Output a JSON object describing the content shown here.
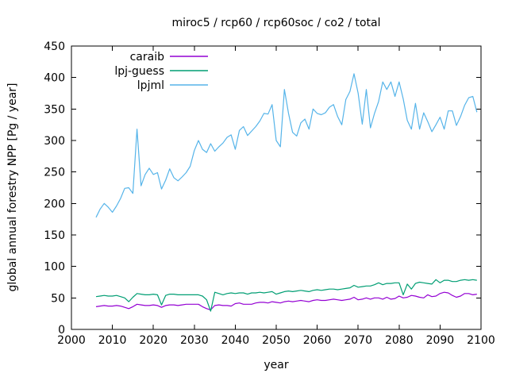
{
  "chart_data": {
    "type": "line",
    "title": "miroc5 / rcp60 / rcp60soc / co2 / total",
    "xlabel": "year",
    "ylabel": "global annual forestry NPP [Pg / year]",
    "xlim": [
      2000,
      2100
    ],
    "ylim": [
      0,
      450
    ],
    "xtick_step": 10,
    "ytick_step": 50,
    "grid": false,
    "legend_position": "top-left-inside",
    "x_start": 2006,
    "x_step": 1,
    "series": [
      {
        "name": "caraib",
        "color": "#9400d3",
        "values": [
          36,
          37,
          38,
          37,
          37,
          38,
          37,
          35,
          33,
          36,
          40,
          39,
          38,
          38,
          39,
          38,
          35,
          38,
          39,
          39,
          38,
          39,
          40,
          40,
          40,
          40,
          36,
          33,
          31,
          38,
          39,
          38,
          38,
          37,
          41,
          42,
          40,
          40,
          40,
          42,
          43,
          43,
          42,
          44,
          43,
          42,
          44,
          45,
          44,
          45,
          46,
          45,
          44,
          46,
          47,
          46,
          46,
          47,
          48,
          47,
          46,
          47,
          48,
          51,
          47,
          48,
          50,
          48,
          50,
          50,
          48,
          51,
          48,
          49,
          53,
          50,
          51,
          54,
          53,
          51,
          50,
          55,
          52,
          53,
          57,
          59,
          58,
          54,
          51,
          53,
          57,
          57,
          55,
          56
        ]
      },
      {
        "name": "lpj-guess",
        "color": "#009e73",
        "values": [
          52,
          53,
          54,
          53,
          53,
          54,
          52,
          50,
          44,
          51,
          57,
          56,
          55,
          55,
          56,
          55,
          39,
          54,
          56,
          56,
          55,
          55,
          55,
          55,
          55,
          55,
          53,
          47,
          29,
          59,
          57,
          55,
          57,
          58,
          57,
          58,
          58,
          56,
          58,
          58,
          59,
          58,
          59,
          60,
          56,
          58,
          60,
          61,
          60,
          61,
          62,
          61,
          60,
          62,
          63,
          62,
          63,
          64,
          64,
          63,
          64,
          65,
          66,
          70,
          67,
          68,
          69,
          69,
          71,
          74,
          71,
          73,
          73,
          74,
          74,
          55,
          72,
          64,
          73,
          75,
          74,
          73,
          72,
          79,
          74,
          78,
          78,
          76,
          76,
          78,
          79,
          78,
          79,
          78
        ]
      },
      {
        "name": "lpjml",
        "color": "#56b4e9",
        "values": [
          178,
          191,
          200,
          194,
          186,
          196,
          208,
          224,
          225,
          216,
          318,
          228,
          246,
          256,
          246,
          249,
          223,
          237,
          255,
          241,
          236,
          242,
          249,
          259,
          284,
          300,
          286,
          281,
          295,
          283,
          290,
          296,
          305,
          309,
          286,
          316,
          322,
          308,
          315,
          322,
          331,
          343,
          342,
          357,
          300,
          290,
          381,
          343,
          313,
          307,
          328,
          334,
          318,
          350,
          343,
          341,
          344,
          353,
          357,
          338,
          325,
          365,
          378,
          406,
          375,
          326,
          381,
          320,
          343,
          362,
          393,
          381,
          393,
          370,
          393,
          366,
          332,
          318,
          359,
          318,
          344,
          330,
          314,
          325,
          337,
          318,
          347,
          347,
          324,
          338,
          356,
          368,
          370,
          345
        ]
      }
    ]
  }
}
